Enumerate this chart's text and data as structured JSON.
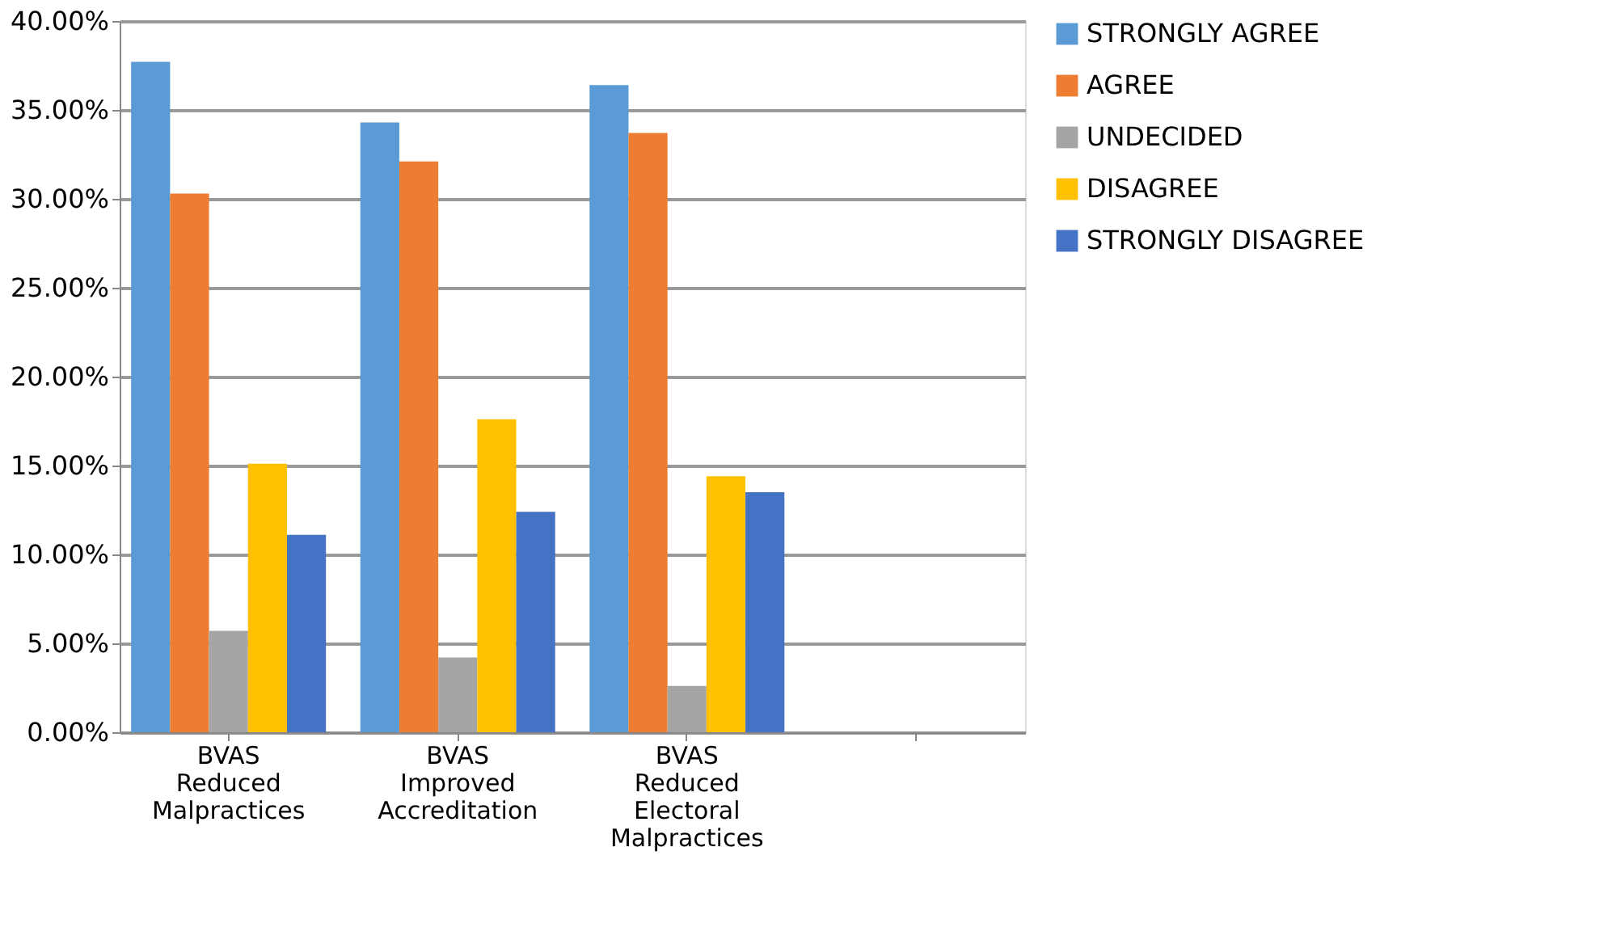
{
  "chart_data": {
    "type": "bar",
    "categories": [
      "BVAS Reduced Malpractices",
      "BVAS Improved Accreditation",
      "BVAS Reduced Electoral Malpractices",
      null
    ],
    "series": [
      {
        "name": "STRONGLY AGREE",
        "color": "#5b9bd5",
        "values": [
          37.7,
          34.3,
          36.4,
          null
        ]
      },
      {
        "name": "AGREE",
        "color": "#ed7d31",
        "values": [
          30.3,
          32.1,
          33.7,
          null
        ]
      },
      {
        "name": "UNDECIDED",
        "color": "#a5a5a5",
        "values": [
          5.7,
          4.2,
          2.6,
          null
        ]
      },
      {
        "name": "DISAGREE",
        "color": "#ffc000",
        "values": [
          15.1,
          17.6,
          14.4,
          null
        ]
      },
      {
        "name": "STRONGLY DISAGREE",
        "color": "#4472c4",
        "values": [
          11.1,
          12.4,
          13.5,
          null
        ]
      }
    ],
    "ylim": [
      0,
      40
    ],
    "yticks": [
      {
        "value": 0,
        "label": "0.00%"
      },
      {
        "value": 5,
        "label": "5.00%"
      },
      {
        "value": 10,
        "label": "10.00%"
      },
      {
        "value": 15,
        "label": "15.00%"
      },
      {
        "value": 20,
        "label": "20.00%"
      },
      {
        "value": 25,
        "label": "25.00%"
      },
      {
        "value": 30,
        "label": "30.00%"
      },
      {
        "value": 35,
        "label": "35.00%"
      },
      {
        "value": 40,
        "label": "40.00%"
      }
    ],
    "grid": "y",
    "legend": "right"
  }
}
